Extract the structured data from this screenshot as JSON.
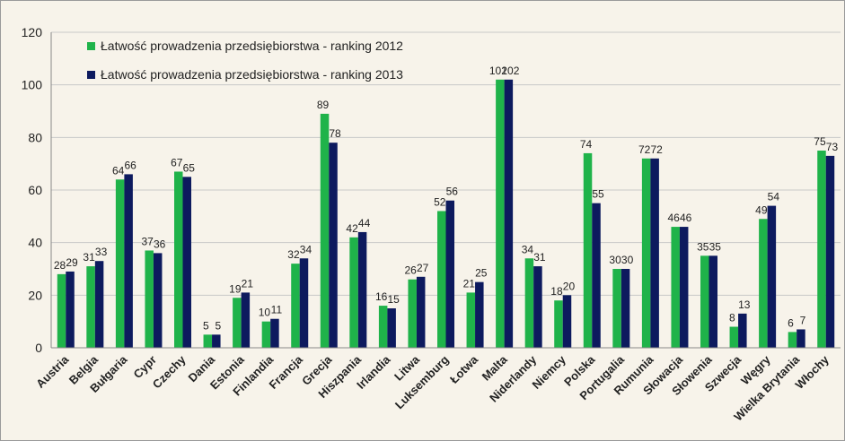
{
  "chart_data": {
    "type": "bar",
    "categories": [
      "Austria",
      "Belgia",
      "Bułgaria",
      "Cypr",
      "Czechy",
      "Dania",
      "Estonia",
      "Finlandia",
      "Francja",
      "Grecja",
      "Hiszpania",
      "Irlandia",
      "Litwa",
      "Luksemburg",
      "Łotwa",
      "Malta",
      "Niderlandy",
      "Niemcy",
      "Polska",
      "Portugalia",
      "Rumunia",
      "Słowacja",
      "Słowenia",
      "Szwecja",
      "Węgry",
      "Wielka Brytania",
      "Włochy"
    ],
    "series": [
      {
        "name": "Łatwość prowadzenia przedsiębiorstwa - ranking 2012",
        "color": "#1fb34a",
        "values": [
          28,
          31,
          64,
          37,
          67,
          5,
          19,
          10,
          32,
          89,
          42,
          16,
          26,
          52,
          21,
          102,
          34,
          18,
          74,
          30,
          72,
          46,
          35,
          8,
          49,
          6,
          75
        ]
      },
      {
        "name": "Łatwość prowadzenia przedsiębiorstwa - ranking 2013",
        "color": "#0d1a5e",
        "values": [
          29,
          33,
          66,
          36,
          65,
          5,
          21,
          11,
          34,
          78,
          44,
          15,
          27,
          56,
          25,
          102,
          31,
          20,
          55,
          30,
          72,
          46,
          35,
          13,
          54,
          7,
          73
        ]
      }
    ],
    "ylim": [
      0,
      120
    ],
    "yticks": [
      0,
      20,
      40,
      60,
      80,
      100,
      120
    ],
    "grid": true
  }
}
